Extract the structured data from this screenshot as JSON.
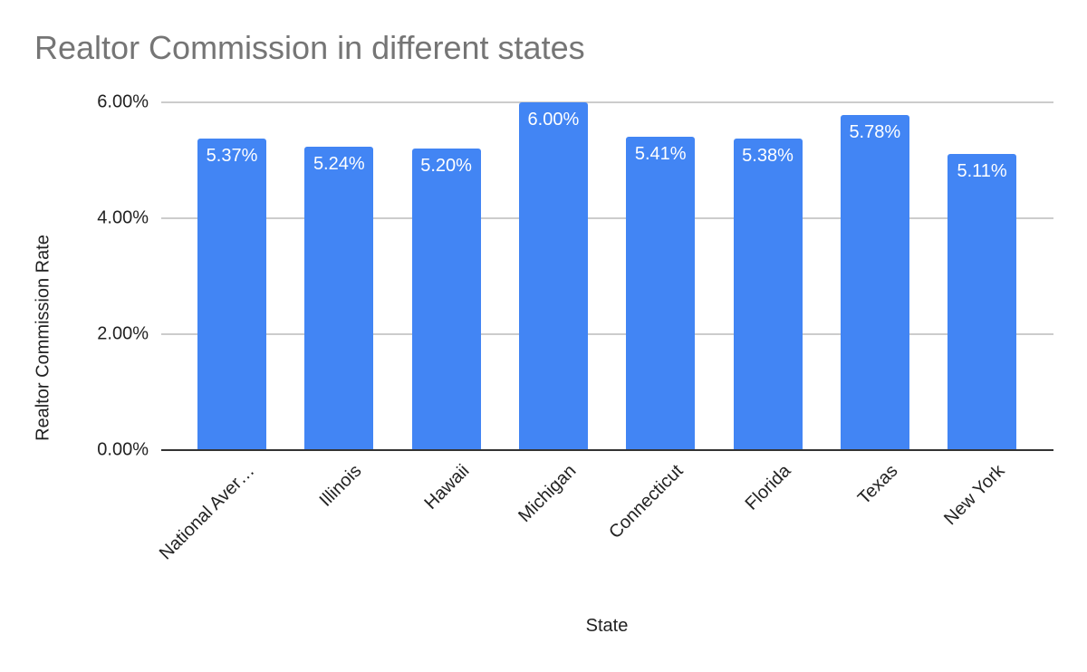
{
  "chart_data": {
    "type": "bar",
    "title": "Realtor Commission in different states",
    "xlabel": "State",
    "ylabel": "Realtor Commission Rate",
    "categories": [
      "National Aver…",
      "Illinois",
      "Hawaii",
      "Michigan",
      "Connecticut",
      "Florida",
      "Texas",
      "New York"
    ],
    "values": [
      5.37,
      5.24,
      5.2,
      6.0,
      5.41,
      5.38,
      5.78,
      5.11
    ],
    "value_labels": [
      "5.37%",
      "5.24%",
      "5.20%",
      "6.00%",
      "5.41%",
      "5.38%",
      "5.78%",
      "5.11%"
    ],
    "ylim": [
      0,
      6
    ],
    "yticks": [
      "0.00%",
      "2.00%",
      "4.00%",
      "6.00%"
    ],
    "grid": true,
    "legend": "none",
    "bar_color": "#4285f4"
  }
}
